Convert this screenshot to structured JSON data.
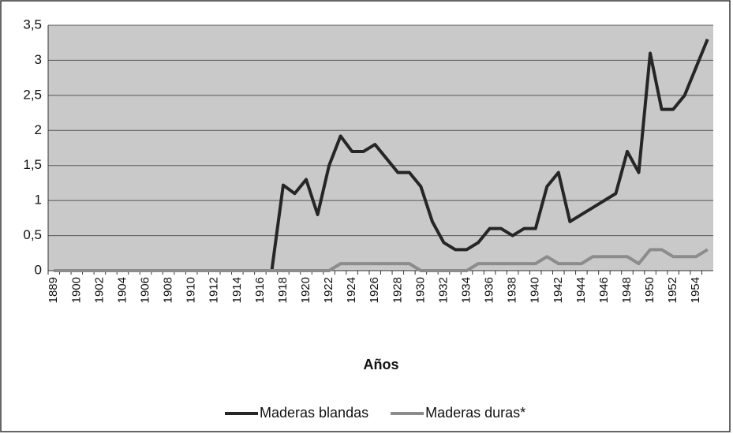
{
  "chart_data": {
    "type": "line",
    "x_label": "Años",
    "categories": [
      "1889",
      null,
      "1900",
      null,
      "1902",
      null,
      "1904",
      null,
      "1906",
      null,
      "1908",
      null,
      "1910",
      null,
      "1912",
      null,
      "1914",
      null,
      "1916",
      null,
      "1918",
      null,
      "1920",
      null,
      "1922",
      null,
      "1924",
      null,
      "1926",
      null,
      "1928",
      null,
      "1930",
      null,
      "1932",
      null,
      "1934",
      null,
      "1936",
      null,
      "1938",
      null,
      "1940",
      null,
      "1942",
      null,
      "1944",
      null,
      "1946",
      null,
      "1948",
      null,
      "1950",
      null,
      "1952",
      null,
      "1954",
      null
    ],
    "series": [
      {
        "name": "Maderas blandas",
        "color": "#262626",
        "values": [
          0,
          0,
          0,
          0,
          0,
          0,
          0,
          0,
          0,
          0,
          0,
          0,
          0,
          0,
          0,
          0,
          0,
          0,
          0,
          0,
          1.22,
          1.1,
          1.3,
          0.8,
          1.5,
          1.92,
          1.7,
          1.7,
          1.8,
          1.6,
          1.4,
          1.4,
          1.2,
          0.7,
          0.4,
          0.3,
          0.3,
          0.4,
          0.6,
          0.6,
          0.5,
          0.6,
          0.6,
          1.2,
          1.4,
          0.7,
          0.8,
          0.9,
          1.0,
          1.1,
          1.7,
          1.4,
          3.1,
          2.3,
          2.3,
          2.5,
          2.9,
          3.3
        ]
      },
      {
        "name": "Maderas duras*",
        "color": "#8c8c8c",
        "values": [
          0,
          0,
          0,
          0,
          0,
          0,
          0,
          0,
          0,
          0,
          0,
          0,
          0,
          0,
          0,
          0,
          0,
          0,
          0,
          0,
          0,
          0,
          0,
          0,
          0,
          0.1,
          0.1,
          0.1,
          0.1,
          0.1,
          0.1,
          0.1,
          0,
          0,
          0,
          0,
          0,
          0.1,
          0.1,
          0.1,
          0.1,
          0.1,
          0.1,
          0.2,
          0.1,
          0.1,
          0.1,
          0.2,
          0.2,
          0.2,
          0.2,
          0.1,
          0.3,
          0.3,
          0.2,
          0.2,
          0.2,
          0.3
        ]
      }
    ],
    "ylim": [
      0,
      3.5
    ],
    "yticks": [
      0,
      {
        "value": 0.5,
        "label": "0,5"
      },
      1,
      {
        "value": 1.5,
        "label": "1,5"
      },
      2,
      {
        "value": 2.5,
        "label": "2,5"
      },
      3,
      {
        "value": 3.5,
        "label": "3,5"
      }
    ],
    "grid": true,
    "legend": "bottom"
  }
}
